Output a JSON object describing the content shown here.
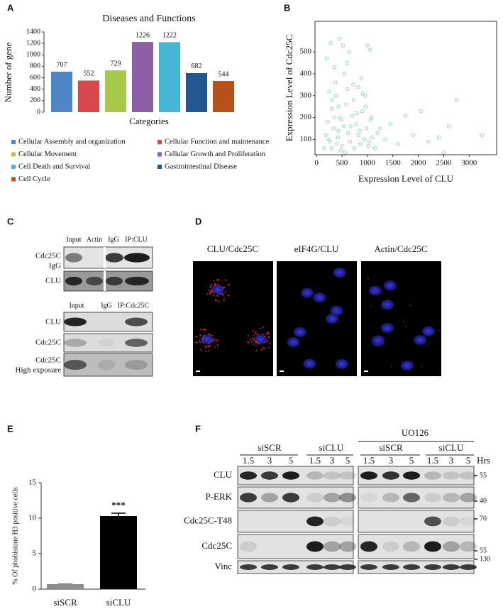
{
  "panel_labels": [
    "A",
    "B",
    "C",
    "D",
    "E",
    "F"
  ],
  "chart_data": [
    {
      "type": "bar",
      "title": "Diseases and Functions",
      "y_label": "Number of gene",
      "x_label": "Categories",
      "categories": [
        "Cellular Assembly and organization",
        "Cellular Function and maintenance",
        "Cellular Movement",
        "Cellular Growth and Proliferation",
        "Cell Death and Survival",
        "Gastrointestinal Disease",
        "Cell Cycle"
      ],
      "values": [
        707,
        552,
        729,
        1226,
        1222,
        682,
        544
      ],
      "colors": [
        "#4f86c6",
        "#d9474a",
        "#a7c84a",
        "#8d5fa8",
        "#45b6d4",
        "#23578e",
        "#b8501c"
      ],
      "ylim": [
        0,
        1400
      ],
      "yticks": [
        0,
        200,
        400,
        600,
        800,
        1000,
        1200,
        1400
      ]
    },
    {
      "type": "scatter",
      "x_label": "Expression Level of CLU",
      "y_label": "Expression Level of Cdc25C",
      "color": "#8fcfc0",
      "x": [
        180,
        220,
        260,
        300,
        340,
        380,
        420,
        460,
        500,
        540,
        580,
        620,
        660,
        700,
        740,
        780,
        820,
        860,
        900,
        940,
        980,
        1020,
        1060,
        1100,
        1150,
        1200,
        250,
        310,
        370,
        430,
        490,
        550,
        610,
        670,
        730,
        790,
        850,
        910,
        970,
        1030,
        150,
        200,
        280,
        350,
        450,
        520,
        640,
        720,
        880,
        960,
        1080,
        1250,
        1350,
        1450,
        1600,
        1750,
        1900,
        2050,
        2200,
        2400,
        2500,
        2600,
        2750,
        3250,
        400,
        480,
        560,
        300,
        240,
        1000,
        1050,
        600,
        820,
        350,
        430
      ],
      "y": [
        120,
        180,
        90,
        240,
        150,
        300,
        110,
        200,
        70,
        160,
        260,
        130,
        90,
        210,
        60,
        170,
        120,
        80,
        230,
        100,
        150,
        70,
        190,
        110,
        60,
        130,
        320,
        280,
        360,
        250,
        190,
        400,
        330,
        160,
        280,
        220,
        140,
        310,
        250,
        90,
        60,
        470,
        540,
        430,
        560,
        530,
        500,
        350,
        380,
        300,
        200,
        150,
        100,
        170,
        80,
        210,
        120,
        230,
        90,
        110,
        40,
        160,
        280,
        120,
        80,
        50,
        40,
        60,
        100,
        530,
        510,
        450,
        340,
        200,
        140
      ],
      "xlim": [
        -30,
        3540
      ],
      "ylim": [
        30,
        640
      ],
      "xticks": [
        0,
        500,
        1000,
        1500,
        2000,
        2500,
        3000
      ],
      "yticks": [
        100,
        200,
        300,
        400,
        500
      ]
    },
    {
      "type": "bar",
      "y_label": "% Of phohistone H3 positive cells",
      "categories": [
        "siSCR",
        "siCLU"
      ],
      "values": [
        0.7,
        10.3
      ],
      "errors": [
        0.05,
        0.4
      ],
      "colors": [
        "#8c8c8c",
        "#000000"
      ],
      "annotation": "***",
      "ylim": [
        0,
        15
      ],
      "yticks": [
        0,
        5,
        10,
        15
      ]
    }
  ],
  "panel_c": {
    "top": {
      "columns": [
        "Input",
        "Actin",
        "IgG",
        "IP:CLU"
      ],
      "rows": [
        [
          "Cdc25C",
          "IgG"
        ],
        [
          "CLU"
        ]
      ]
    },
    "bottom": {
      "columns": [
        "Input",
        "IgG",
        "IP:Cdc25C"
      ],
      "rows": [
        [
          "CLU"
        ],
        [
          "Cdc25C"
        ],
        [
          "Cdc25C",
          "High exposure"
        ]
      ]
    }
  },
  "panel_d": {
    "titles": [
      "CLU/Cdc25C",
      "eIF4G/CLU",
      "Actin/Cdc25C"
    ]
  },
  "panel_f": {
    "treatment": "UO126",
    "groups": [
      "siSCR",
      "siCLU",
      "siSCR",
      "siCLU"
    ],
    "times": [
      "1.5",
      "3",
      "5"
    ],
    "unit": "Hrs",
    "rows": [
      "CLU",
      "P-ERK",
      "Cdc25C-T48",
      "Cdc25C",
      "Vinc"
    ],
    "markers": [
      "55",
      "40",
      "70",
      "55",
      "130"
    ]
  }
}
